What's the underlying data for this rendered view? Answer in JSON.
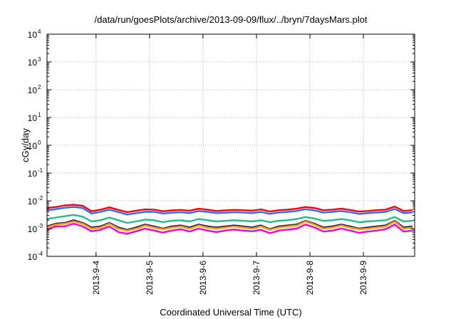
{
  "chart_data": {
    "type": "line",
    "title": "/data/run/goesPlots/archive/2013-09-09/flux/../bryn/7daysMars.plot",
    "xlabel": "Coordinated Universal Time (UTC)",
    "ylabel": "cGy/day",
    "yscale": "log",
    "ylim": [
      0.0001,
      10000
    ],
    "y_ticks": [
      {
        "base": "10",
        "exp": "-4",
        "value": 0.0001
      },
      {
        "base": "10",
        "exp": "-3",
        "value": 0.001
      },
      {
        "base": "10",
        "exp": "-2",
        "value": 0.01
      },
      {
        "base": "10",
        "exp": "-1",
        "value": 0.1
      },
      {
        "base": "10",
        "exp": "0",
        "value": 1
      },
      {
        "base": "10",
        "exp": "1",
        "value": 10
      },
      {
        "base": "10",
        "exp": "2",
        "value": 100
      },
      {
        "base": "10",
        "exp": "3",
        "value": 1000
      },
      {
        "base": "10",
        "exp": "4",
        "value": 10000
      }
    ],
    "x_range": [
      "2013-09-03 02:00",
      "2013-09-09 23:00"
    ],
    "x_ticks": [
      {
        "label": "2013-9-4",
        "value": "2013-09-04 00:00"
      },
      {
        "label": "2013-9-5",
        "value": "2013-09-05 00:00"
      },
      {
        "label": "2013-9-6",
        "value": "2013-09-06 00:00"
      },
      {
        "label": "2013-9-7",
        "value": "2013-09-07 00:00"
      },
      {
        "label": "2013-9-8",
        "value": "2013-09-08 00:00"
      },
      {
        "label": "2013-9-9",
        "value": "2013-09-09 00:00"
      }
    ],
    "grid": true,
    "x": [
      "2013-09-03 02:00",
      "2013-09-03 06:00",
      "2013-09-03 10:00",
      "2013-09-03 14:00",
      "2013-09-03 18:00",
      "2013-09-03 22:00",
      "2013-09-04 02:00",
      "2013-09-04 06:00",
      "2013-09-04 10:00",
      "2013-09-04 14:00",
      "2013-09-04 18:00",
      "2013-09-04 22:00",
      "2013-09-05 02:00",
      "2013-09-05 06:00",
      "2013-09-05 10:00",
      "2013-09-05 14:00",
      "2013-09-05 18:00",
      "2013-09-05 22:00",
      "2013-09-06 02:00",
      "2013-09-06 06:00",
      "2013-09-06 10:00",
      "2013-09-06 14:00",
      "2013-09-06 18:00",
      "2013-09-06 22:00",
      "2013-09-07 02:00",
      "2013-09-07 06:00",
      "2013-09-07 10:00",
      "2013-09-07 14:00",
      "2013-09-07 18:00",
      "2013-09-07 22:00",
      "2013-09-08 02:00",
      "2013-09-08 06:00",
      "2013-09-08 10:00",
      "2013-09-08 14:00",
      "2013-09-08 18:00",
      "2013-09-08 22:00",
      "2013-09-09 02:00",
      "2013-09-09 06:00",
      "2013-09-09 10:00",
      "2013-09-09 14:00",
      "2013-09-09 18:00",
      "2013-09-09 22:00"
    ],
    "series": [
      {
        "color": "#ff0000",
        "values": [
          0.0055,
          0.006,
          0.0068,
          0.0072,
          0.0066,
          0.0042,
          0.0048,
          0.0058,
          0.0047,
          0.0039,
          0.0044,
          0.0049,
          0.0048,
          0.0042,
          0.0045,
          0.0047,
          0.0044,
          0.0052,
          0.0048,
          0.0043,
          0.0045,
          0.0047,
          0.0046,
          0.0044,
          0.0049,
          0.0041,
          0.0046,
          0.0048,
          0.0052,
          0.006,
          0.0055,
          0.0046,
          0.0048,
          0.0052,
          0.0047,
          0.0041,
          0.0043,
          0.0046,
          0.0048,
          0.0062,
          0.0043,
          0.0046
        ]
      },
      {
        "color": "#3366ff",
        "values": [
          0.0045,
          0.005,
          0.0056,
          0.006,
          0.0055,
          0.0035,
          0.004,
          0.0048,
          0.0039,
          0.0032,
          0.0036,
          0.004,
          0.004,
          0.0035,
          0.0037,
          0.0039,
          0.0036,
          0.0043,
          0.004,
          0.0036,
          0.0037,
          0.0039,
          0.0038,
          0.0036,
          0.004,
          0.0034,
          0.0038,
          0.004,
          0.0043,
          0.005,
          0.0045,
          0.0038,
          0.004,
          0.0043,
          0.0039,
          0.0034,
          0.0036,
          0.0038,
          0.004,
          0.0051,
          0.0036,
          0.0038
        ]
      },
      {
        "color": "#22bb88",
        "values": [
          0.0022,
          0.0025,
          0.0028,
          0.0031,
          0.0027,
          0.0018,
          0.002,
          0.0025,
          0.002,
          0.0016,
          0.0018,
          0.0021,
          0.002,
          0.0017,
          0.0019,
          0.002,
          0.0018,
          0.0022,
          0.002,
          0.0018,
          0.0019,
          0.002,
          0.0019,
          0.0018,
          0.002,
          0.0017,
          0.0019,
          0.002,
          0.0022,
          0.0026,
          0.0023,
          0.0019,
          0.002,
          0.0022,
          0.002,
          0.0017,
          0.0018,
          0.0019,
          0.002,
          0.0026,
          0.0018,
          0.0019
        ]
      },
      {
        "color": "#1a1a5e",
        "values": [
          0.0012,
          0.0015,
          0.0016,
          0.002,
          0.0016,
          0.0011,
          0.0012,
          0.0016,
          0.0011,
          0.0009,
          0.0011,
          0.0014,
          0.0012,
          0.001,
          0.0012,
          0.0013,
          0.0011,
          0.0014,
          0.0012,
          0.0011,
          0.0012,
          0.0013,
          0.0012,
          0.0011,
          0.0013,
          0.00095,
          0.0012,
          0.0013,
          0.0014,
          0.0019,
          0.0015,
          0.0011,
          0.0012,
          0.0014,
          0.0012,
          0.001,
          0.0011,
          0.0012,
          0.0013,
          0.0019,
          0.0011,
          0.0012
        ]
      },
      {
        "color": "#ff9900",
        "values": [
          0.0011,
          0.0014,
          0.0015,
          0.0018,
          0.0015,
          0.001,
          0.0011,
          0.0015,
          0.001,
          0.00085,
          0.001,
          0.0013,
          0.0011,
          0.00095,
          0.0011,
          0.0012,
          0.001,
          0.0013,
          0.0011,
          0.001,
          0.0011,
          0.0012,
          0.0011,
          0.001,
          0.0012,
          0.0009,
          0.0011,
          0.0012,
          0.0013,
          0.0018,
          0.0014,
          0.001,
          0.0011,
          0.0013,
          0.0011,
          0.00095,
          0.001,
          0.0011,
          0.0012,
          0.0018,
          0.001,
          0.0011
        ]
      },
      {
        "color": "#ff00cc",
        "values": [
          0.0009,
          0.0012,
          0.0012,
          0.0015,
          0.0012,
          0.0008,
          0.0009,
          0.0012,
          0.00075,
          0.00065,
          0.0008,
          0.001,
          0.00085,
          0.00072,
          0.00085,
          0.00095,
          0.00078,
          0.001,
          0.00085,
          0.00075,
          0.00085,
          0.00092,
          0.00085,
          0.0008,
          0.0009,
          0.00068,
          0.00085,
          0.00092,
          0.001,
          0.0014,
          0.0011,
          0.00078,
          0.00085,
          0.001,
          0.00085,
          0.0007,
          0.00078,
          0.00085,
          0.00095,
          0.0014,
          0.00078,
          0.00085
        ]
      }
    ]
  }
}
